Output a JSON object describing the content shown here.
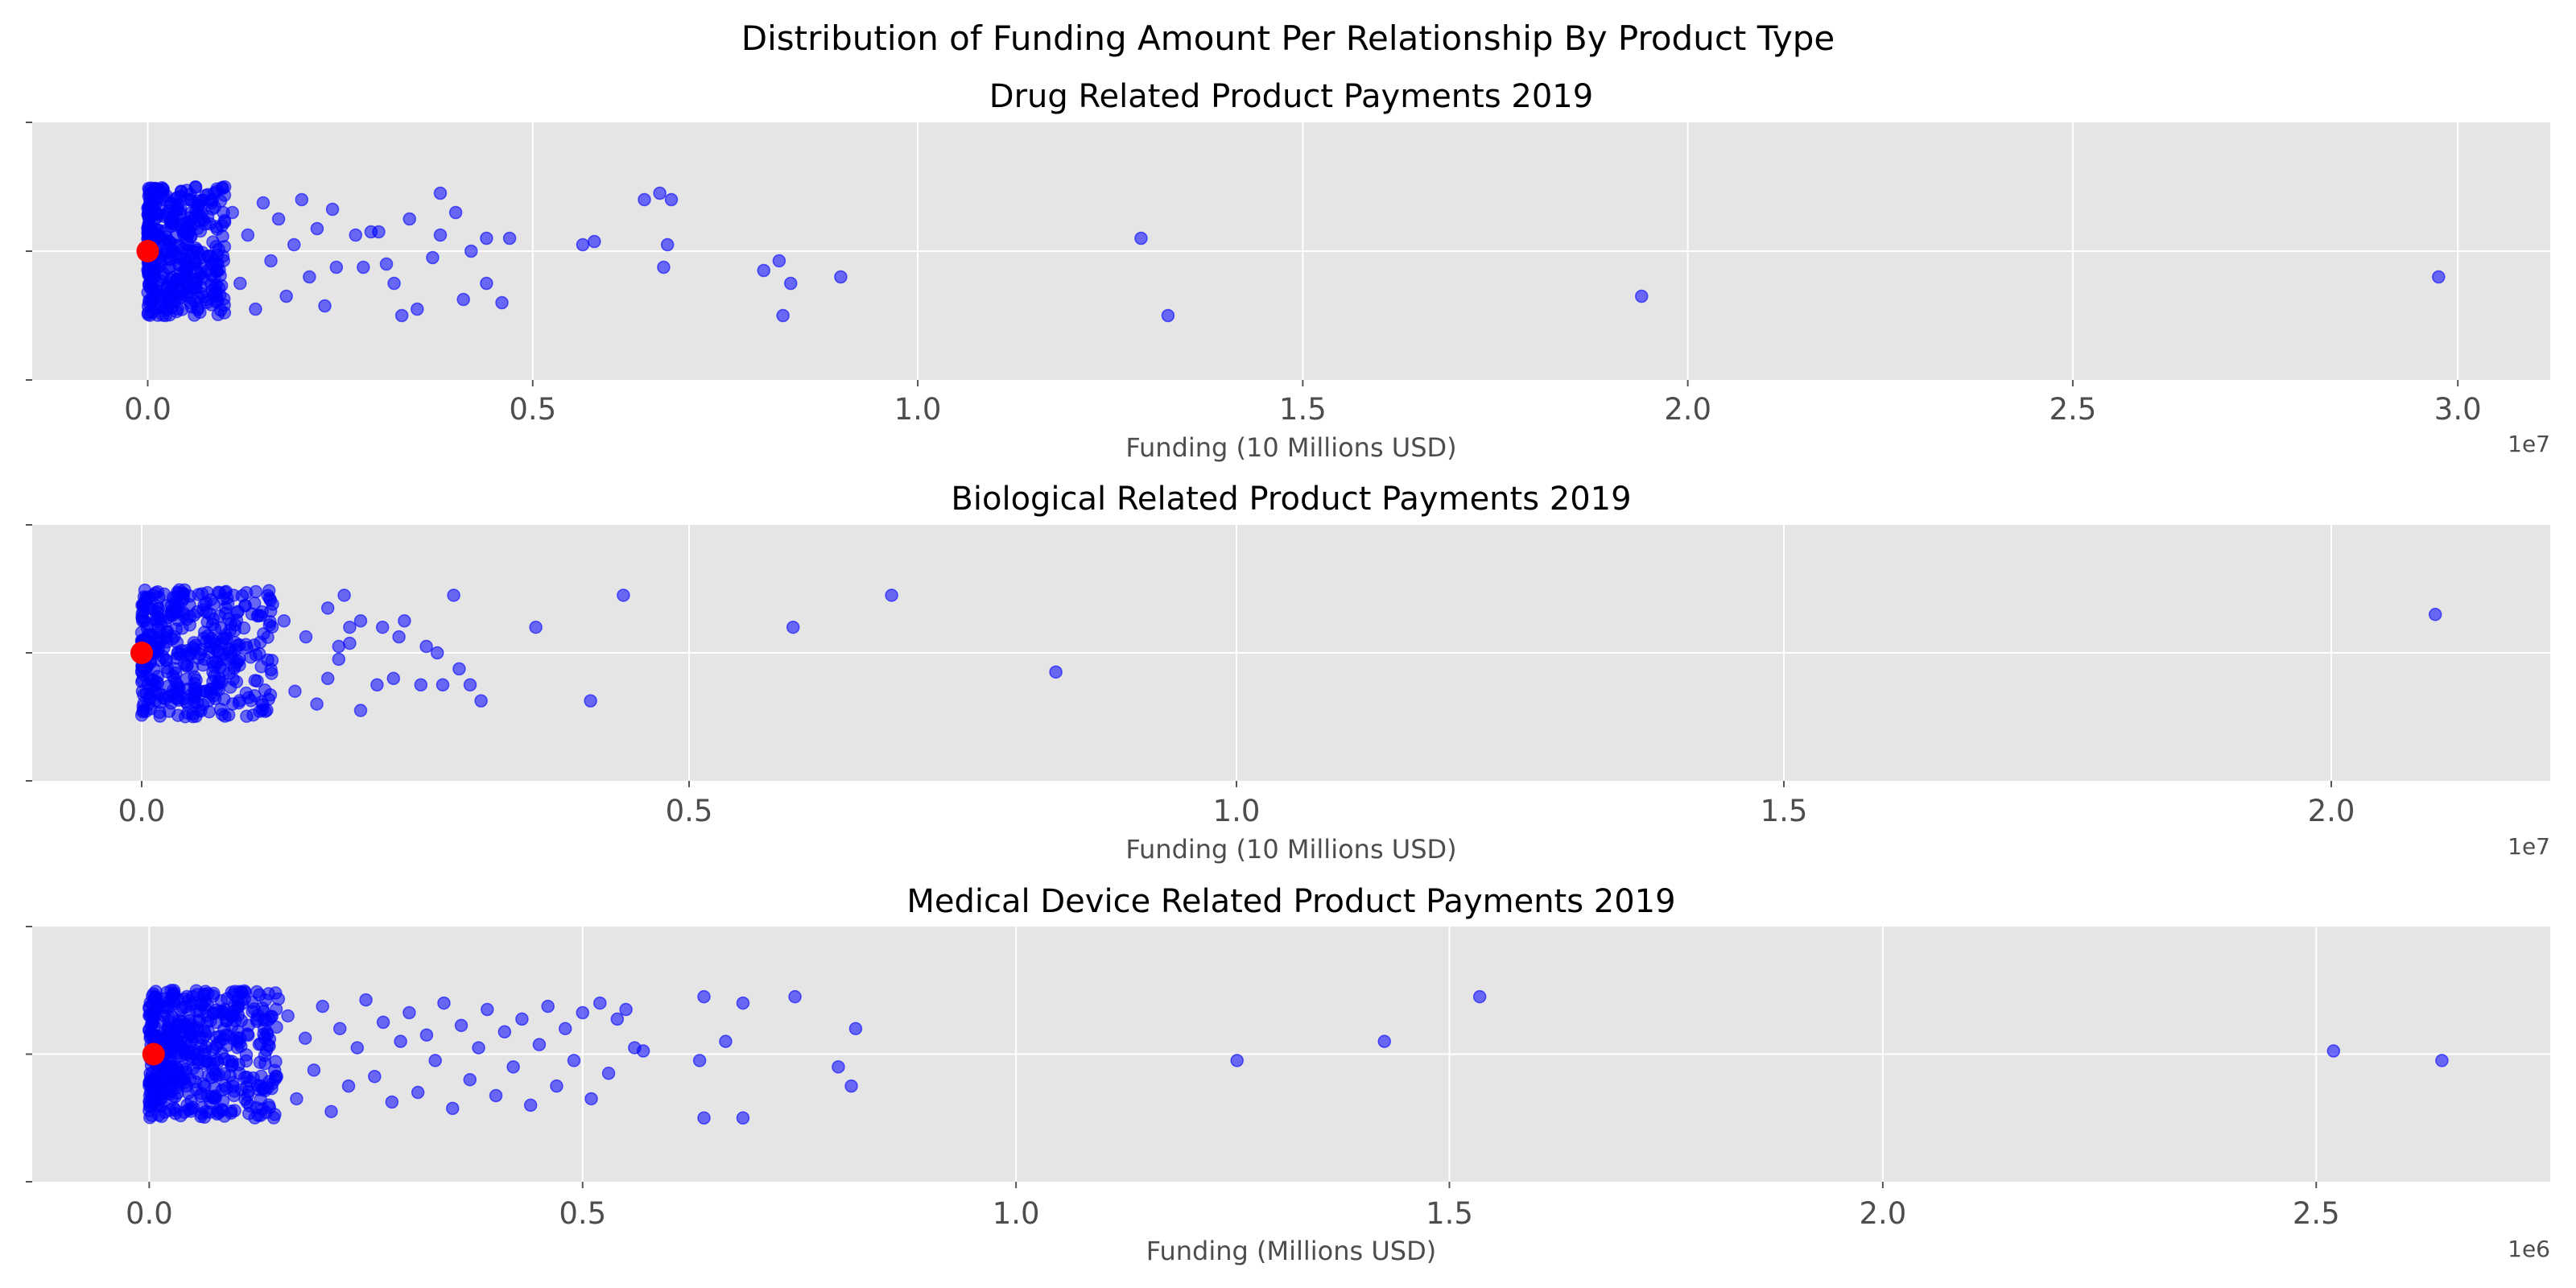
{
  "figure": {
    "title": "Distribution of Funding Amount Per Relationship By Product Type"
  },
  "chart_data": [
    {
      "type": "scatter",
      "title": "Drug Related Product Payments 2019",
      "xlabel": "Funding (10 Millions USD)",
      "ylabel": "",
      "offset_label": "1e7",
      "scale": 10000000,
      "xlim": [
        -0.15,
        3.12
      ],
      "xticks": [
        0.0,
        0.5,
        1.0,
        1.5,
        2.0,
        2.5,
        3.0
      ],
      "xtick_labels": [
        "0.0",
        "0.5",
        "1.0",
        "1.5",
        "2.0",
        "2.5",
        "3.0"
      ],
      "grid": true,
      "point_color": "#0000ff",
      "median_color": "#ff0000",
      "median": 0.0,
      "dense_cluster": {
        "x_range": [
          0.0,
          0.1
        ],
        "count": 400
      },
      "points": [
        {
          "x": 0.11,
          "y": 0.12
        },
        {
          "x": 0.12,
          "y": -0.1
        },
        {
          "x": 0.13,
          "y": 0.05
        },
        {
          "x": 0.14,
          "y": -0.18
        },
        {
          "x": 0.15,
          "y": 0.15
        },
        {
          "x": 0.16,
          "y": -0.03
        },
        {
          "x": 0.17,
          "y": 0.1
        },
        {
          "x": 0.18,
          "y": -0.14
        },
        {
          "x": 0.19,
          "y": 0.02
        },
        {
          "x": 0.2,
          "y": 0.16
        },
        {
          "x": 0.21,
          "y": -0.08
        },
        {
          "x": 0.22,
          "y": 0.07
        },
        {
          "x": 0.23,
          "y": -0.17
        },
        {
          "x": 0.24,
          "y": 0.13
        },
        {
          "x": 0.245,
          "y": -0.05
        },
        {
          "x": 0.27,
          "y": 0.05
        },
        {
          "x": 0.28,
          "y": -0.05
        },
        {
          "x": 0.29,
          "y": 0.06
        },
        {
          "x": 0.3,
          "y": 0.06
        },
        {
          "x": 0.31,
          "y": -0.04
        },
        {
          "x": 0.32,
          "y": -0.1
        },
        {
          "x": 0.33,
          "y": -0.2
        },
        {
          "x": 0.34,
          "y": 0.1
        },
        {
          "x": 0.35,
          "y": -0.18
        },
        {
          "x": 0.37,
          "y": -0.02
        },
        {
          "x": 0.38,
          "y": 0.18
        },
        {
          "x": 0.38,
          "y": 0.05
        },
        {
          "x": 0.4,
          "y": 0.12
        },
        {
          "x": 0.41,
          "y": -0.15
        },
        {
          "x": 0.42,
          "y": 0.0
        },
        {
          "x": 0.44,
          "y": -0.1
        },
        {
          "x": 0.44,
          "y": 0.04
        },
        {
          "x": 0.46,
          "y": -0.16
        },
        {
          "x": 0.47,
          "y": 0.04
        },
        {
          "x": 0.565,
          "y": 0.02
        },
        {
          "x": 0.58,
          "y": 0.03
        },
        {
          "x": 0.645,
          "y": 0.16
        },
        {
          "x": 0.665,
          "y": 0.18
        },
        {
          "x": 0.67,
          "y": -0.05
        },
        {
          "x": 0.675,
          "y": 0.02
        },
        {
          "x": 0.68,
          "y": 0.16
        },
        {
          "x": 0.8,
          "y": -0.06
        },
        {
          "x": 0.82,
          "y": -0.03
        },
        {
          "x": 0.825,
          "y": -0.2
        },
        {
          "x": 0.835,
          "y": -0.1
        },
        {
          "x": 0.9,
          "y": -0.08
        },
        {
          "x": 1.29,
          "y": 0.04
        },
        {
          "x": 1.325,
          "y": -0.2
        },
        {
          "x": 1.94,
          "y": -0.14
        },
        {
          "x": 2.975,
          "y": -0.08
        }
      ]
    },
    {
      "type": "scatter",
      "title": "Biological Related Product Payments 2019",
      "xlabel": "Funding (10 Millions USD)",
      "ylabel": "",
      "offset_label": "1e7",
      "scale": 10000000,
      "xlim": [
        -0.1,
        2.2
      ],
      "xticks": [
        0.0,
        0.5,
        1.0,
        1.5,
        2.0
      ],
      "xtick_labels": [
        "0.0",
        "0.5",
        "1.0",
        "1.5",
        "2.0"
      ],
      "grid": true,
      "point_color": "#0000ff",
      "median_color": "#ff0000",
      "median": 0.0,
      "dense_cluster": {
        "x_range": [
          0.0,
          0.12
        ],
        "count": 400
      },
      "points": [
        {
          "x": 0.13,
          "y": 0.1
        },
        {
          "x": 0.14,
          "y": -0.12
        },
        {
          "x": 0.15,
          "y": 0.05
        },
        {
          "x": 0.16,
          "y": -0.16
        },
        {
          "x": 0.17,
          "y": 0.14
        },
        {
          "x": 0.18,
          "y": -0.02
        },
        {
          "x": 0.19,
          "y": 0.08
        },
        {
          "x": 0.2,
          "y": -0.18
        },
        {
          "x": 0.18,
          "y": 0.02
        },
        {
          "x": 0.17,
          "y": -0.08
        },
        {
          "x": 0.185,
          "y": 0.18
        },
        {
          "x": 0.19,
          "y": 0.03
        },
        {
          "x": 0.2,
          "y": 0.1
        },
        {
          "x": 0.215,
          "y": -0.1
        },
        {
          "x": 0.22,
          "y": 0.08
        },
        {
          "x": 0.23,
          "y": -0.08
        },
        {
          "x": 0.235,
          "y": 0.05
        },
        {
          "x": 0.24,
          "y": 0.1
        },
        {
          "x": 0.255,
          "y": -0.1
        },
        {
          "x": 0.26,
          "y": 0.02
        },
        {
          "x": 0.27,
          "y": 0.0
        },
        {
          "x": 0.275,
          "y": -0.1
        },
        {
          "x": 0.285,
          "y": 0.18
        },
        {
          "x": 0.29,
          "y": -0.05
        },
        {
          "x": 0.3,
          "y": -0.1
        },
        {
          "x": 0.31,
          "y": -0.15
        },
        {
          "x": 0.36,
          "y": 0.08
        },
        {
          "x": 0.41,
          "y": -0.15
        },
        {
          "x": 0.44,
          "y": 0.18
        },
        {
          "x": 0.595,
          "y": 0.08
        },
        {
          "x": 0.685,
          "y": 0.18
        },
        {
          "x": 0.835,
          "y": -0.06
        },
        {
          "x": 2.095,
          "y": 0.12
        }
      ]
    },
    {
      "type": "scatter",
      "title": "Medical Device Related Product Payments 2019",
      "xlabel": "Funding (Millions USD)",
      "ylabel": "",
      "offset_label": "1e6",
      "scale": 1000000,
      "xlim": [
        -0.135,
        2.77
      ],
      "xticks": [
        0.0,
        0.5,
        1.0,
        1.5,
        2.0,
        2.5
      ],
      "xtick_labels": [
        "0.0",
        "0.5",
        "1.0",
        "1.5",
        "2.0",
        "2.5"
      ],
      "grid": true,
      "point_color": "#0000ff",
      "median_color": "#ff0000",
      "median": 0.005,
      "dense_cluster": {
        "x_range": [
          0.0,
          0.15
        ],
        "count": 500
      },
      "points": [
        {
          "x": 0.16,
          "y": 0.12
        },
        {
          "x": 0.17,
          "y": -0.14
        },
        {
          "x": 0.18,
          "y": 0.05
        },
        {
          "x": 0.19,
          "y": -0.05
        },
        {
          "x": 0.2,
          "y": 0.15
        },
        {
          "x": 0.21,
          "y": -0.18
        },
        {
          "x": 0.22,
          "y": 0.08
        },
        {
          "x": 0.23,
          "y": -0.1
        },
        {
          "x": 0.24,
          "y": 0.02
        },
        {
          "x": 0.25,
          "y": 0.17
        },
        {
          "x": 0.26,
          "y": -0.07
        },
        {
          "x": 0.27,
          "y": 0.1
        },
        {
          "x": 0.28,
          "y": -0.15
        },
        {
          "x": 0.29,
          "y": 0.04
        },
        {
          "x": 0.3,
          "y": 0.13
        },
        {
          "x": 0.31,
          "y": -0.12
        },
        {
          "x": 0.32,
          "y": 0.06
        },
        {
          "x": 0.33,
          "y": -0.02
        },
        {
          "x": 0.34,
          "y": 0.16
        },
        {
          "x": 0.35,
          "y": -0.17
        },
        {
          "x": 0.36,
          "y": 0.09
        },
        {
          "x": 0.37,
          "y": -0.08
        },
        {
          "x": 0.38,
          "y": 0.02
        },
        {
          "x": 0.39,
          "y": 0.14
        },
        {
          "x": 0.4,
          "y": -0.13
        },
        {
          "x": 0.41,
          "y": 0.07
        },
        {
          "x": 0.42,
          "y": -0.04
        },
        {
          "x": 0.43,
          "y": 0.11
        },
        {
          "x": 0.44,
          "y": -0.16
        },
        {
          "x": 0.45,
          "y": 0.03
        },
        {
          "x": 0.46,
          "y": 0.15
        },
        {
          "x": 0.47,
          "y": -0.1
        },
        {
          "x": 0.48,
          "y": 0.08
        },
        {
          "x": 0.49,
          "y": -0.02
        },
        {
          "x": 0.5,
          "y": 0.13
        },
        {
          "x": 0.51,
          "y": -0.14
        },
        {
          "x": 0.52,
          "y": 0.16
        },
        {
          "x": 0.53,
          "y": -0.06
        },
        {
          "x": 0.54,
          "y": 0.11
        },
        {
          "x": 0.55,
          "y": 0.14
        },
        {
          "x": 0.56,
          "y": 0.02
        },
        {
          "x": 0.57,
          "y": 0.01
        },
        {
          "x": 0.635,
          "y": -0.02
        },
        {
          "x": 0.64,
          "y": 0.18
        },
        {
          "x": 0.64,
          "y": -0.2
        },
        {
          "x": 0.665,
          "y": 0.04
        },
        {
          "x": 0.685,
          "y": 0.16
        },
        {
          "x": 0.685,
          "y": -0.2
        },
        {
          "x": 0.745,
          "y": 0.18
        },
        {
          "x": 0.795,
          "y": -0.04
        },
        {
          "x": 0.81,
          "y": -0.1
        },
        {
          "x": 0.815,
          "y": 0.08
        },
        {
          "x": 1.255,
          "y": -0.02
        },
        {
          "x": 1.425,
          "y": 0.04
        },
        {
          "x": 1.535,
          "y": 0.18
        },
        {
          "x": 2.52,
          "y": 0.01
        },
        {
          "x": 2.645,
          "y": -0.02
        }
      ]
    }
  ]
}
